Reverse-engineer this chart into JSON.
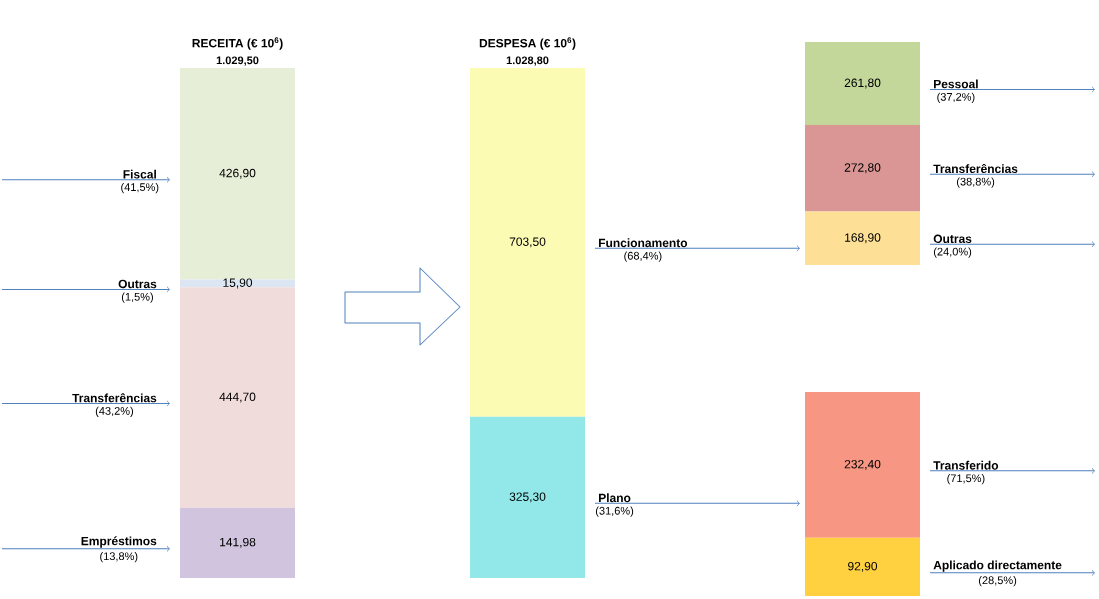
{
  "chart_data": [
    {
      "type": "bar",
      "stacked": true,
      "title": "RECEITA (€ 10$^{6}$)",
      "categories": [
        null
      ],
      "totals": [
        "1.029,50"
      ],
      "series": [
        {
          "name": "Empréstimos",
          "color": "#d0c4de",
          "values": [
            141.98
          ],
          "value_labels": [
            "141,98"
          ]
        },
        {
          "name": "Transferências",
          "color": "#f0dcda",
          "values": [
            444.7
          ],
          "value_labels": [
            "444,70"
          ]
        },
        {
          "name": "Outras",
          "color": "#dce6f2",
          "values": [
            15.9
          ],
          "value_labels": [
            "15,90"
          ]
        },
        {
          "name": "Fiscal",
          "color": "#e6eed8",
          "values": [
            426.9
          ],
          "value_labels": [
            "426,90"
          ]
        }
      ],
      "annotations": [
        "(13,8%)",
        "(43,2%)",
        "(1,5%)",
        "(41,5%)"
      ]
    },
    {
      "type": "bar",
      "stacked": true,
      "title": "DESPESA (€ 10$^{6}$)",
      "categories": [
        null
      ],
      "totals": [
        "1.028,80"
      ],
      "series": [
        {
          "name": "Plano",
          "color": "#92e8e8",
          "values": [
            325.3
          ],
          "value_labels": [
            "325,30"
          ]
        },
        {
          "name": "Funcionamento",
          "color": "#fbfbb4",
          "values": [
            703.5
          ],
          "value_labels": [
            "703,50"
          ]
        }
      ],
      "annotations": [
        "(31,6%)",
        "(68,4%)"
      ]
    },
    {
      "type": "bar",
      "stacked": true,
      "categories": [
        null
      ],
      "series": [
        {
          "name": "Outras",
          "color": "#fde096",
          "values": [
            168.9
          ],
          "value_labels": [
            "168,90"
          ]
        },
        {
          "name": "Transferências",
          "color": "#d99694",
          "values": [
            272.8
          ],
          "value_labels": [
            "272,80"
          ]
        },
        {
          "name": "Pessoal",
          "color": "#c4d79b",
          "values": [
            261.8
          ],
          "value_labels": [
            "261,80"
          ]
        }
      ],
      "annotations": [
        "(24,0%)",
        "(38,8%)",
        "(37,2%)"
      ]
    },
    {
      "type": "bar",
      "stacked": true,
      "categories": [
        null
      ],
      "series": [
        {
          "name": "Aplicado directamente",
          "color": "#ffd040",
          "values": [
            92.9
          ],
          "value_labels": [
            "92,90"
          ]
        },
        {
          "name": "Transferido",
          "color": "#f79682",
          "values": [
            232.4
          ],
          "value_labels": [
            "232,40"
          ]
        }
      ],
      "annotations": [
        "(28,5%)",
        "(71,5%)"
      ]
    }
  ]
}
